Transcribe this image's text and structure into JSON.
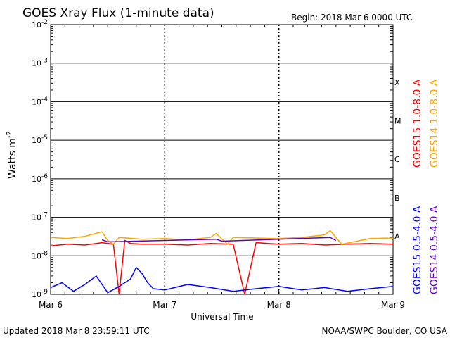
{
  "chart_data": {
    "type": "line",
    "title": "GOES Xray Flux (1-minute data)",
    "begin_label": "Begin:  2018 Mar 6 0000 UTC",
    "xlabel": "Universal Time",
    "ylabel": "Watts m",
    "ylabel_exponent": "-2",
    "x_ticks": [
      "Mar 6",
      "Mar 7",
      "Mar 8",
      "Mar 9"
    ],
    "y_scale": "log",
    "ylim": [
      1e-09,
      0.01
    ],
    "y_ticks": [
      {
        "mant": "10",
        "exp": "-2"
      },
      {
        "mant": "10",
        "exp": "-3"
      },
      {
        "mant": "10",
        "exp": "-4"
      },
      {
        "mant": "10",
        "exp": "-5"
      },
      {
        "mant": "10",
        "exp": "-6"
      },
      {
        "mant": "10",
        "exp": "-7"
      },
      {
        "mant": "10",
        "exp": "-8"
      },
      {
        "mant": "10",
        "exp": "-9"
      }
    ],
    "flare_classes": [
      "X",
      "M",
      "C",
      "B",
      "A"
    ],
    "x_range_days": [
      0,
      3
    ],
    "series": [
      {
        "name": "GOES15 1.0-8.0 A",
        "color": "#ff0000",
        "x": [
          0.0,
          0.15,
          0.3,
          0.45,
          0.55,
          0.6,
          0.65,
          0.7,
          0.8,
          1.0,
          1.2,
          1.4,
          1.6,
          1.7,
          1.8,
          2.0,
          2.2,
          2.4,
          2.6,
          2.8,
          3.0
        ],
        "y": [
          1.8e-08,
          2e-08,
          1.9e-08,
          2.2e-08,
          2e-08,
          1e-09,
          2.5e-08,
          2.1e-08,
          2e-08,
          2e-08,
          1.9e-08,
          2.1e-08,
          2e-08,
          1e-09,
          2.2e-08,
          2e-08,
          2.1e-08,
          1.9e-08,
          2e-08,
          2.1e-08,
          2e-08
        ]
      },
      {
        "name": "GOES14 1.0-8.0 A",
        "color": "#ffa500",
        "x": [
          0.0,
          0.15,
          0.3,
          0.45,
          0.5,
          0.55,
          0.6,
          0.8,
          1.0,
          1.2,
          1.4,
          1.45,
          1.55,
          1.6,
          1.8,
          2.0,
          2.2,
          2.4,
          2.45,
          2.55,
          2.8,
          3.0
        ],
        "y": [
          3e-08,
          2.8e-08,
          3.2e-08,
          4.2e-08,
          2.5e-08,
          2e-08,
          3e-08,
          2.7e-08,
          2.8e-08,
          2.6e-08,
          3e-08,
          3.8e-08,
          2e-08,
          3e-08,
          2.9e-08,
          2.8e-08,
          3e-08,
          3.5e-08,
          4.5e-08,
          2e-08,
          2.8e-08,
          2.9e-08
        ]
      },
      {
        "name": "GOES15 0.5-4.0 A",
        "color": "#0000ff",
        "x": [
          0.0,
          0.1,
          0.2,
          0.3,
          0.4,
          0.5,
          0.6,
          0.7,
          0.75,
          0.8,
          0.85,
          0.9,
          1.0,
          1.2,
          1.4,
          1.6,
          1.8,
          2.0,
          2.2,
          2.4,
          2.6,
          2.8,
          3.0
        ],
        "y": [
          1.5e-09,
          2e-09,
          1.2e-09,
          1.8e-09,
          3e-09,
          1.1e-09,
          1.6e-09,
          2.5e-09,
          5e-09,
          3.5e-09,
          2e-09,
          1.4e-09,
          1.3e-09,
          1.8e-09,
          1.5e-09,
          1.2e-09,
          1.4e-09,
          1.6e-09,
          1.3e-09,
          1.5e-09,
          1.2e-09,
          1.4e-09,
          1.6e-09
        ]
      },
      {
        "name": "GOES14 0.5-4.0 A",
        "color": "#6000c0",
        "x": [
          0.45,
          0.5,
          1.45,
          1.5,
          2.45,
          2.5
        ],
        "y": [
          2.6e-08,
          2.3e-08,
          2.7e-08,
          2.4e-08,
          3e-08,
          2.5e-08
        ]
      }
    ],
    "grid": "horizontal at decades, dashed at day boundaries",
    "legend": "right side, vertical"
  },
  "footer": {
    "updated": "Updated 2018 Mar  8 23:59:11 UTC",
    "credit": "NOAA/SWPC Boulder, CO USA"
  }
}
